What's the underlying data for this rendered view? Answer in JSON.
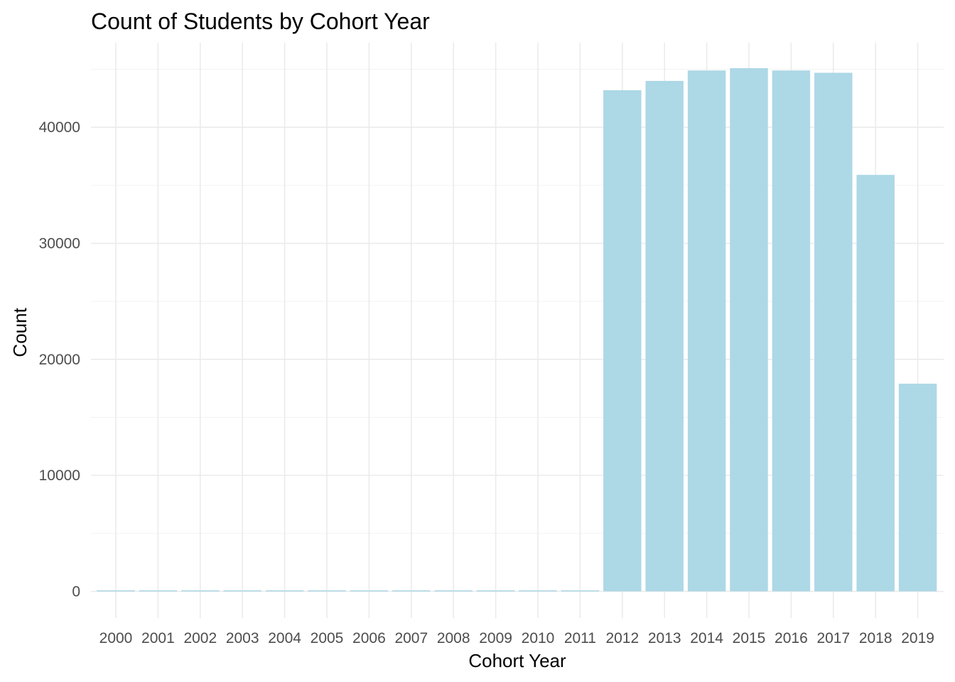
{
  "chart_data": {
    "type": "bar",
    "title": "Count of Students by Cohort Year",
    "xlabel": "Cohort Year",
    "ylabel": "Count",
    "categories": [
      "2000",
      "2001",
      "2002",
      "2003",
      "2004",
      "2005",
      "2006",
      "2007",
      "2008",
      "2009",
      "2010",
      "2011",
      "2012",
      "2013",
      "2014",
      "2015",
      "2016",
      "2017",
      "2018",
      "2019"
    ],
    "values": [
      60,
      55,
      50,
      60,
      55,
      60,
      50,
      60,
      55,
      50,
      55,
      60,
      43200,
      44000,
      44900,
      45100,
      44900,
      44700,
      35900,
      17900
    ],
    "y_ticks": [
      0,
      10000,
      20000,
      30000,
      40000
    ],
    "y_tick_labels": [
      "0",
      "10000",
      "20000",
      "30000",
      "40000"
    ],
    "ylim": [
      -2300,
      47300
    ],
    "bar_color": "#add8e6",
    "grid": true,
    "legend": "none"
  }
}
